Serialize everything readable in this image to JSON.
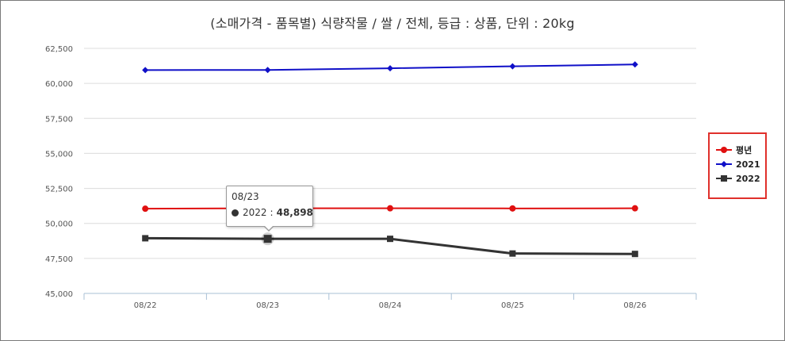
{
  "chart_data": {
    "type": "line",
    "title": "(소매가격 - 품목별) 식량작물 / 쌀 / 전체, 등급 : 상품, 단위 : 20kg",
    "xlabel": "",
    "ylabel": "",
    "categories": [
      "08/22",
      "08/23",
      "08/24",
      "08/25",
      "08/26"
    ],
    "ylim": [
      45000,
      62500
    ],
    "yticks": [
      45000,
      47500,
      50000,
      52500,
      55000,
      57500,
      60000,
      62500
    ],
    "ytick_labels": [
      "45,000",
      "47,500",
      "50,000",
      "52,500",
      "55,000",
      "57,500",
      "60,000",
      "62,500"
    ],
    "grid": true,
    "legend_position": "right",
    "series": [
      {
        "name": "평년",
        "color": "#e01010",
        "marker": "circle",
        "values": [
          51050,
          51080,
          51080,
          51070,
          51080
        ]
      },
      {
        "name": "2021",
        "color": "#1010c8",
        "marker": "diamond",
        "values": [
          60950,
          60960,
          61080,
          61220,
          61350
        ]
      },
      {
        "name": "2022",
        "color": "#333333",
        "marker": "square",
        "values": [
          48940,
          48898,
          48898,
          47850,
          47820
        ]
      }
    ],
    "tooltip": {
      "date": "08/23",
      "series": "2022",
      "separator": ":",
      "value": "48,898"
    }
  }
}
